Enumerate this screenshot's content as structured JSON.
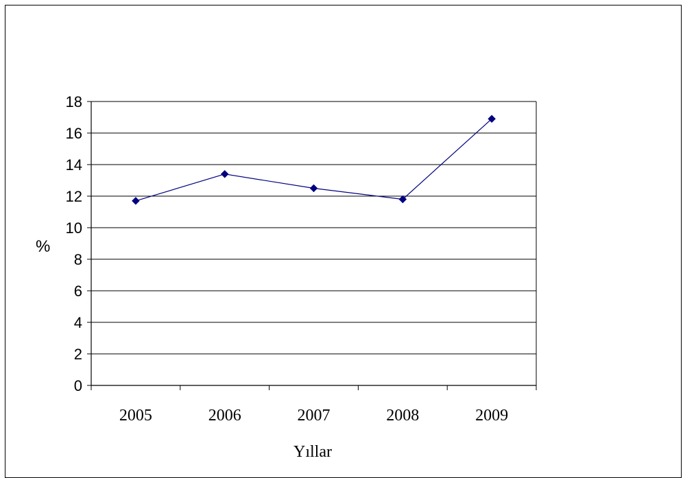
{
  "chart_data": {
    "type": "line",
    "title": "",
    "xlabel": "Yıllar",
    "ylabel": "%",
    "categories": [
      "2005",
      "2006",
      "2007",
      "2008",
      "2009"
    ],
    "series": [
      {
        "values": [
          11.7,
          13.4,
          12.5,
          11.8,
          16.9
        ]
      }
    ],
    "ylim": [
      0,
      18
    ],
    "yticks": [
      "0",
      "2",
      "4",
      "6",
      "8",
      "10",
      "12",
      "14",
      "16",
      "18"
    ],
    "grid": true,
    "legend": "none",
    "colors": {
      "line": "#000080",
      "marker": "#000080",
      "grid": "#000000",
      "axis": "#000000"
    }
  }
}
